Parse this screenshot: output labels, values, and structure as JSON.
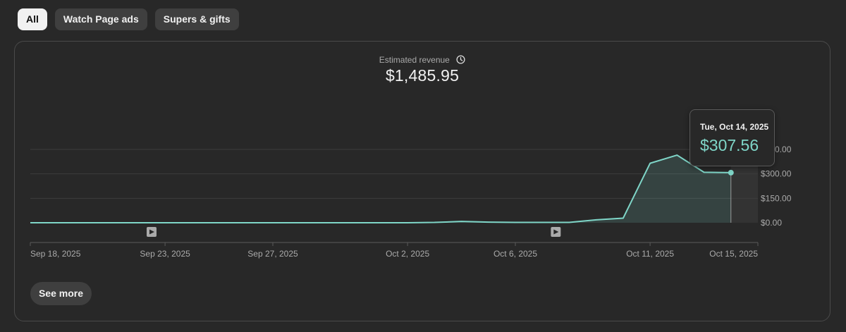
{
  "filters": {
    "chips": [
      {
        "label": "All",
        "active": true
      },
      {
        "label": "Watch Page ads",
        "active": false
      },
      {
        "label": "Supers & gifts",
        "active": false
      }
    ]
  },
  "metric": {
    "label": "Estimated revenue",
    "value": "$1,485.95",
    "icon": "clock-icon"
  },
  "tooltip": {
    "date": "Tue, Oct 14, 2025",
    "value": "$307.56"
  },
  "see_more_label": "See more",
  "colors": {
    "background": "#282828",
    "line": "#7fd6c8",
    "accent_value": "#7fd6c8"
  },
  "chart_data": {
    "type": "area",
    "x": [
      "Sep 18",
      "Sep 19",
      "Sep 20",
      "Sep 21",
      "Sep 22",
      "Sep 23",
      "Sep 24",
      "Sep 25",
      "Sep 26",
      "Sep 27",
      "Sep 28",
      "Sep 29",
      "Sep 30",
      "Oct 1",
      "Oct 2",
      "Oct 3",
      "Oct 4",
      "Oct 5",
      "Oct 6",
      "Oct 7",
      "Oct 8",
      "Oct 9",
      "Oct 10",
      "Oct 11",
      "Oct 12",
      "Oct 13",
      "Oct 14"
    ],
    "series": [
      {
        "values": [
          0,
          0,
          0,
          0,
          0,
          0,
          0,
          0,
          0,
          0,
          0,
          0,
          0,
          0,
          0,
          2,
          8,
          4,
          2,
          2,
          2,
          18,
          28,
          365,
          415,
          310,
          307.56
        ]
      }
    ],
    "x_tick_labels": [
      "Sep 18, 2025",
      "Sep 23, 2025",
      "Sep 27, 2025",
      "Oct 2, 2025",
      "Oct 6, 2025",
      "Oct 11, 2025",
      "Oct 15, 2025"
    ],
    "y_tick_labels": [
      "$0.00",
      "$150.00",
      "$300.00",
      "$450.00"
    ],
    "y_ticks": [
      0,
      150,
      300,
      450
    ],
    "ylim": [
      0,
      450
    ],
    "grid": true,
    "highlighted_point": {
      "date": "Oct 14",
      "value": 307.56
    },
    "video_markers": [
      "Sep 22",
      "Oct 7"
    ]
  }
}
